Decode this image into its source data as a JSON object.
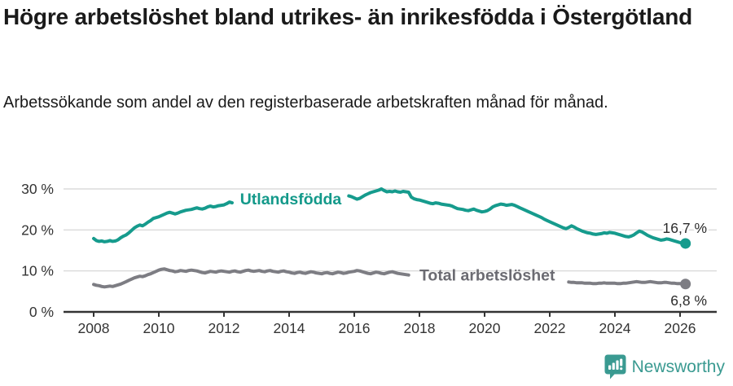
{
  "header": {
    "title": "Högre arbetslöshet bland utrikes- än inrikesfödda i Östergötland",
    "subtitle": "Arbetssökande som andel av den registerbaserade arbetskraften månad för månad."
  },
  "footer": {
    "brand": "Newsworthy",
    "logo_icon": "bar-chart-speech-bubble-icon",
    "brand_color": "#3a9a91"
  },
  "colors": {
    "grid": "#dcdcdc",
    "axis": "#333333",
    "text": "#1a1a1a",
    "tick_text": "#333333",
    "value_label_text": "#2b2b2b"
  },
  "chart_data": {
    "type": "line",
    "title": "Högre arbetslöshet bland utrikes- än inrikesfödda i Östergötland",
    "subtitle": "Arbetssökande som andel av den registerbaserade arbetskraften månad för månad.",
    "x_unit": "month",
    "x_start_year": 2008,
    "x_ticks": [
      "2008",
      "2010",
      "2012",
      "2014",
      "2016",
      "2018",
      "2020",
      "2022",
      "2024",
      "2026"
    ],
    "y_ticks": [
      {
        "value": 0,
        "label": "0 %"
      },
      {
        "value": 10,
        "label": "10 %"
      },
      {
        "value": 20,
        "label": "20 %"
      },
      {
        "value": 30,
        "label": "30 %"
      }
    ],
    "ylim": [
      0,
      33
    ],
    "xlim": [
      2007.08,
      2027.1
    ],
    "grid": "horizontal",
    "legend_position": "inline-labels",
    "series": [
      {
        "name": "Utlandsfödda",
        "color": "#169b8d",
        "label_color": "#13998a",
        "label_x": 2014.05,
        "label_y": 27.6,
        "label_gap_years": [
          2012.33,
          2015.8
        ],
        "end_label": "16,7 %",
        "end_label_position": "above",
        "end_value": 16.7,
        "values": [
          17.9,
          17.4,
          17.2,
          17.3,
          17.1,
          17.2,
          17.4,
          17.2,
          17.3,
          17.6,
          18.1,
          18.5,
          18.8,
          19.3,
          19.9,
          20.5,
          20.9,
          21.2,
          21.0,
          21.4,
          21.9,
          22.3,
          22.8,
          23.0,
          23.2,
          23.5,
          23.8,
          24.1,
          24.3,
          24.1,
          23.9,
          24.1,
          24.4,
          24.6,
          24.8,
          24.9,
          25.0,
          25.2,
          25.4,
          25.2,
          25.1,
          25.3,
          25.6,
          25.8,
          25.6,
          25.7,
          25.9,
          26.0,
          26.1,
          26.4,
          26.8,
          26.6,
          26.4,
          26.5,
          26.6,
          26.5,
          26.7,
          26.8,
          26.6,
          26.5,
          26.6,
          26.8,
          26.9,
          26.7,
          26.6,
          26.8,
          27.0,
          27.1,
          26.9,
          26.8,
          27.0,
          27.1,
          27.2,
          27.1,
          27.0,
          27.2,
          27.3,
          27.1,
          27.2,
          27.4,
          27.3,
          27.5,
          27.6,
          27.4,
          27.5,
          27.7,
          27.6,
          27.8,
          27.9,
          27.7,
          27.9,
          28.1,
          28.3,
          28.4,
          28.3,
          28.1,
          27.8,
          27.5,
          27.7,
          28.1,
          28.5,
          28.8,
          29.1,
          29.3,
          29.5,
          29.7,
          30.0,
          29.6,
          29.3,
          29.4,
          29.3,
          29.5,
          29.3,
          29.2,
          29.4,
          29.3,
          29.2,
          28.0,
          27.6,
          27.4,
          27.3,
          27.1,
          26.9,
          26.7,
          26.5,
          26.4,
          26.6,
          26.5,
          26.3,
          26.2,
          26.1,
          26.0,
          25.8,
          25.5,
          25.2,
          25.1,
          25.0,
          24.8,
          24.7,
          24.9,
          25.1,
          24.8,
          24.6,
          24.4,
          24.5,
          24.7,
          25.1,
          25.6,
          25.9,
          26.1,
          26.3,
          26.2,
          26.0,
          26.1,
          26.2,
          26.0,
          25.7,
          25.4,
          25.1,
          24.8,
          24.5,
          24.2,
          23.9,
          23.6,
          23.3,
          23.0,
          22.6,
          22.3,
          22.0,
          21.7,
          21.4,
          21.1,
          20.8,
          20.5,
          20.3,
          20.6,
          21.0,
          20.7,
          20.3,
          20.0,
          19.7,
          19.5,
          19.3,
          19.2,
          19.0,
          18.9,
          19.0,
          19.1,
          19.3,
          19.2,
          19.4,
          19.3,
          19.2,
          19.0,
          18.8,
          18.6,
          18.4,
          18.3,
          18.5,
          18.8,
          19.3,
          19.7,
          19.5,
          19.1,
          18.7,
          18.4,
          18.1,
          17.9,
          17.7,
          17.5,
          17.6,
          17.8,
          17.7,
          17.5,
          17.3,
          17.1,
          16.9,
          16.8,
          16.7
        ]
      },
      {
        "name": "Total arbetslöshet",
        "color": "#7d7d83",
        "label_color": "#6b6b72",
        "label_x": 2020.08,
        "label_y": 9.0,
        "label_gap_years": [
          2017.7,
          2022.55
        ],
        "end_label": "6,8 %",
        "end_label_position": "below",
        "end_value": 6.8,
        "values": [
          6.7,
          6.5,
          6.4,
          6.2,
          6.1,
          6.2,
          6.3,
          6.2,
          6.4,
          6.6,
          6.8,
          7.1,
          7.4,
          7.7,
          8.0,
          8.3,
          8.5,
          8.7,
          8.6,
          8.8,
          9.1,
          9.3,
          9.6,
          9.9,
          10.2,
          10.4,
          10.5,
          10.3,
          10.1,
          10.0,
          9.8,
          9.9,
          10.1,
          10.0,
          9.9,
          10.1,
          10.2,
          10.1,
          10.0,
          9.8,
          9.6,
          9.5,
          9.7,
          9.9,
          9.8,
          9.7,
          9.9,
          10.0,
          9.9,
          9.8,
          9.7,
          9.9,
          10.0,
          9.8,
          9.7,
          9.9,
          10.1,
          10.2,
          10.0,
          9.9,
          10.0,
          10.1,
          9.9,
          9.8,
          10.0,
          10.1,
          9.9,
          9.8,
          9.7,
          9.9,
          10.0,
          9.8,
          9.7,
          9.5,
          9.4,
          9.6,
          9.7,
          9.5,
          9.4,
          9.6,
          9.8,
          9.7,
          9.5,
          9.4,
          9.3,
          9.5,
          9.6,
          9.4,
          9.3,
          9.5,
          9.7,
          9.6,
          9.4,
          9.5,
          9.7,
          9.8,
          9.9,
          10.1,
          10.0,
          9.8,
          9.6,
          9.4,
          9.3,
          9.5,
          9.7,
          9.6,
          9.4,
          9.3,
          9.5,
          9.7,
          9.8,
          9.6,
          9.4,
          9.3,
          9.2,
          9.1,
          9.0,
          8.9,
          8.9,
          8.8,
          8.8,
          8.7,
          8.7,
          8.6,
          8.6,
          8.5,
          8.5,
          8.4,
          8.4,
          8.3,
          8.3,
          8.2,
          8.2,
          8.1,
          8.1,
          8.0,
          8.0,
          8.0,
          7.9,
          7.9,
          7.9,
          7.8,
          7.8,
          7.8,
          7.9,
          8.0,
          8.3,
          8.6,
          8.8,
          8.9,
          9.0,
          8.9,
          8.8,
          8.7,
          8.6,
          8.5,
          8.4,
          8.3,
          8.2,
          8.1,
          8.0,
          7.9,
          7.8,
          7.7,
          7.6,
          7.5,
          7.4,
          7.4,
          7.4,
          7.3,
          7.3,
          7.3,
          7.2,
          7.2,
          7.3,
          7.3,
          7.2,
          7.2,
          7.1,
          7.1,
          7.1,
          7.0,
          7.0,
          7.0,
          6.9,
          6.9,
          7.0,
          7.0,
          7.1,
          7.0,
          7.0,
          7.0,
          7.0,
          6.9,
          6.9,
          7.0,
          7.0,
          7.1,
          7.2,
          7.3,
          7.4,
          7.3,
          7.2,
          7.2,
          7.3,
          7.4,
          7.3,
          7.2,
          7.1,
          7.1,
          7.2,
          7.2,
          7.1,
          7.0,
          7.0,
          6.9,
          6.9,
          6.9,
          6.8
        ]
      }
    ]
  }
}
